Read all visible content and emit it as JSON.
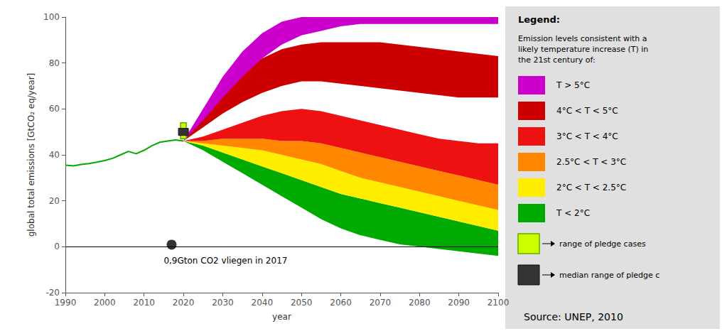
{
  "chart_data": {
    "type": "area",
    "xlabel": "year",
    "ylabel": "global total emissions [GtCO₂ eq/year]",
    "xlim": [
      1990,
      2100
    ],
    "ylim": [
      -20,
      100
    ],
    "xticks": [
      1990,
      2000,
      2010,
      2020,
      2030,
      2040,
      2050,
      2060,
      2070,
      2080,
      2090,
      2100
    ],
    "yticks": [
      -20,
      0,
      20,
      40,
      60,
      80,
      100
    ],
    "grid": false,
    "history": {
      "color": "#00aa00",
      "x": [
        1990,
        1992,
        1994,
        1996,
        1998,
        2000,
        2002,
        2004,
        2006,
        2008,
        2010,
        2012,
        2014,
        2016,
        2018,
        2020
      ],
      "values": [
        35.5,
        35.2,
        35.8,
        36.2,
        36.8,
        37.5,
        38.5,
        40.0,
        41.5,
        40.5,
        42.0,
        44.0,
        45.5,
        46.0,
        46.5,
        46.0
      ]
    },
    "x": [
      2020,
      2025,
      2030,
      2035,
      2040,
      2045,
      2050,
      2055,
      2060,
      2065,
      2070,
      2075,
      2080,
      2085,
      2090,
      2095,
      2100
    ],
    "series": [
      {
        "name": "T > 5°C",
        "color": "#cc00cc",
        "low": [
          46,
          55,
          65,
          74,
          82,
          88,
          92,
          94,
          96,
          97,
          97,
          97,
          97,
          97,
          97,
          97,
          97
        ],
        "high": [
          46,
          60,
          74,
          85,
          93,
          98,
          100,
          100,
          100,
          100,
          100,
          100,
          100,
          100,
          100,
          100,
          100
        ]
      },
      {
        "name": "4°C < T < 5°C",
        "color": "#cc0000",
        "low": [
          46,
          52,
          58,
          63,
          67,
          70,
          72,
          72,
          71,
          70,
          69,
          68,
          67,
          66,
          65,
          65,
          65
        ],
        "high": [
          46,
          58,
          68,
          76,
          82,
          86,
          88,
          89,
          89,
          89,
          89,
          88,
          87,
          86,
          85,
          84,
          83
        ]
      },
      {
        "name": "3°C < T < 4°C",
        "color": "#ee1111",
        "low": [
          46,
          46,
          47,
          47,
          47,
          46,
          46,
          45,
          43,
          41,
          39,
          37,
          35,
          33,
          31,
          29,
          27
        ],
        "high": [
          46,
          48,
          51,
          54,
          57,
          59,
          60,
          59,
          57,
          55,
          53,
          51,
          49,
          47,
          46,
          45,
          45
        ]
      },
      {
        "name": "2.5°C < T < 3°C",
        "color": "#ff8800",
        "low": [
          46,
          45,
          44,
          43,
          42,
          40,
          38,
          36,
          33,
          30,
          28,
          26,
          24,
          22,
          20,
          18,
          16
        ],
        "high": [
          46,
          46,
          47,
          47,
          47,
          46,
          46,
          45,
          43,
          41,
          39,
          37,
          35,
          33,
          31,
          29,
          27
        ]
      },
      {
        "name": "2°C < T < 2.5°C",
        "color": "#ffee00",
        "low": [
          46,
          44,
          41,
          38,
          35,
          32,
          29,
          26,
          23,
          21,
          19,
          17,
          15,
          13,
          11,
          9,
          7
        ],
        "high": [
          46,
          45,
          44,
          43,
          42,
          40,
          38,
          36,
          33,
          30,
          28,
          26,
          24,
          22,
          20,
          18,
          16
        ]
      },
      {
        "name": "T < 2°C",
        "color": "#00aa00",
        "low": [
          46,
          42,
          37,
          32,
          27,
          22,
          17,
          12,
          8,
          5,
          3,
          1,
          0,
          -1,
          -2,
          -3,
          -4
        ],
        "high": [
          46,
          44,
          41,
          38,
          35,
          32,
          29,
          26,
          23,
          21,
          19,
          17,
          15,
          13,
          11,
          9,
          7
        ]
      }
    ],
    "hlines": [
      0
    ],
    "points": [
      {
        "x": 2017,
        "y": 0.9,
        "color": "#000000"
      }
    ],
    "annotations": [
      {
        "text": "0,9Gton CO2 vliegen in 2017",
        "x": 2015,
        "y": -8
      }
    ],
    "pledge": {
      "x": 2020,
      "low": 47,
      "high": 54,
      "median": 50,
      "color": "#ccff00",
      "edge_color": "#66aa00",
      "median_color": "#333333",
      "label": "range of pledge cases",
      "median_label": "median range of pledge c"
    },
    "legend_title": "Legend:",
    "legend_text": "Emission levels consistent with a\nlikely temperature increase (T) in\nthe 21st century of:",
    "source": "Source: UNEP, 2010"
  }
}
